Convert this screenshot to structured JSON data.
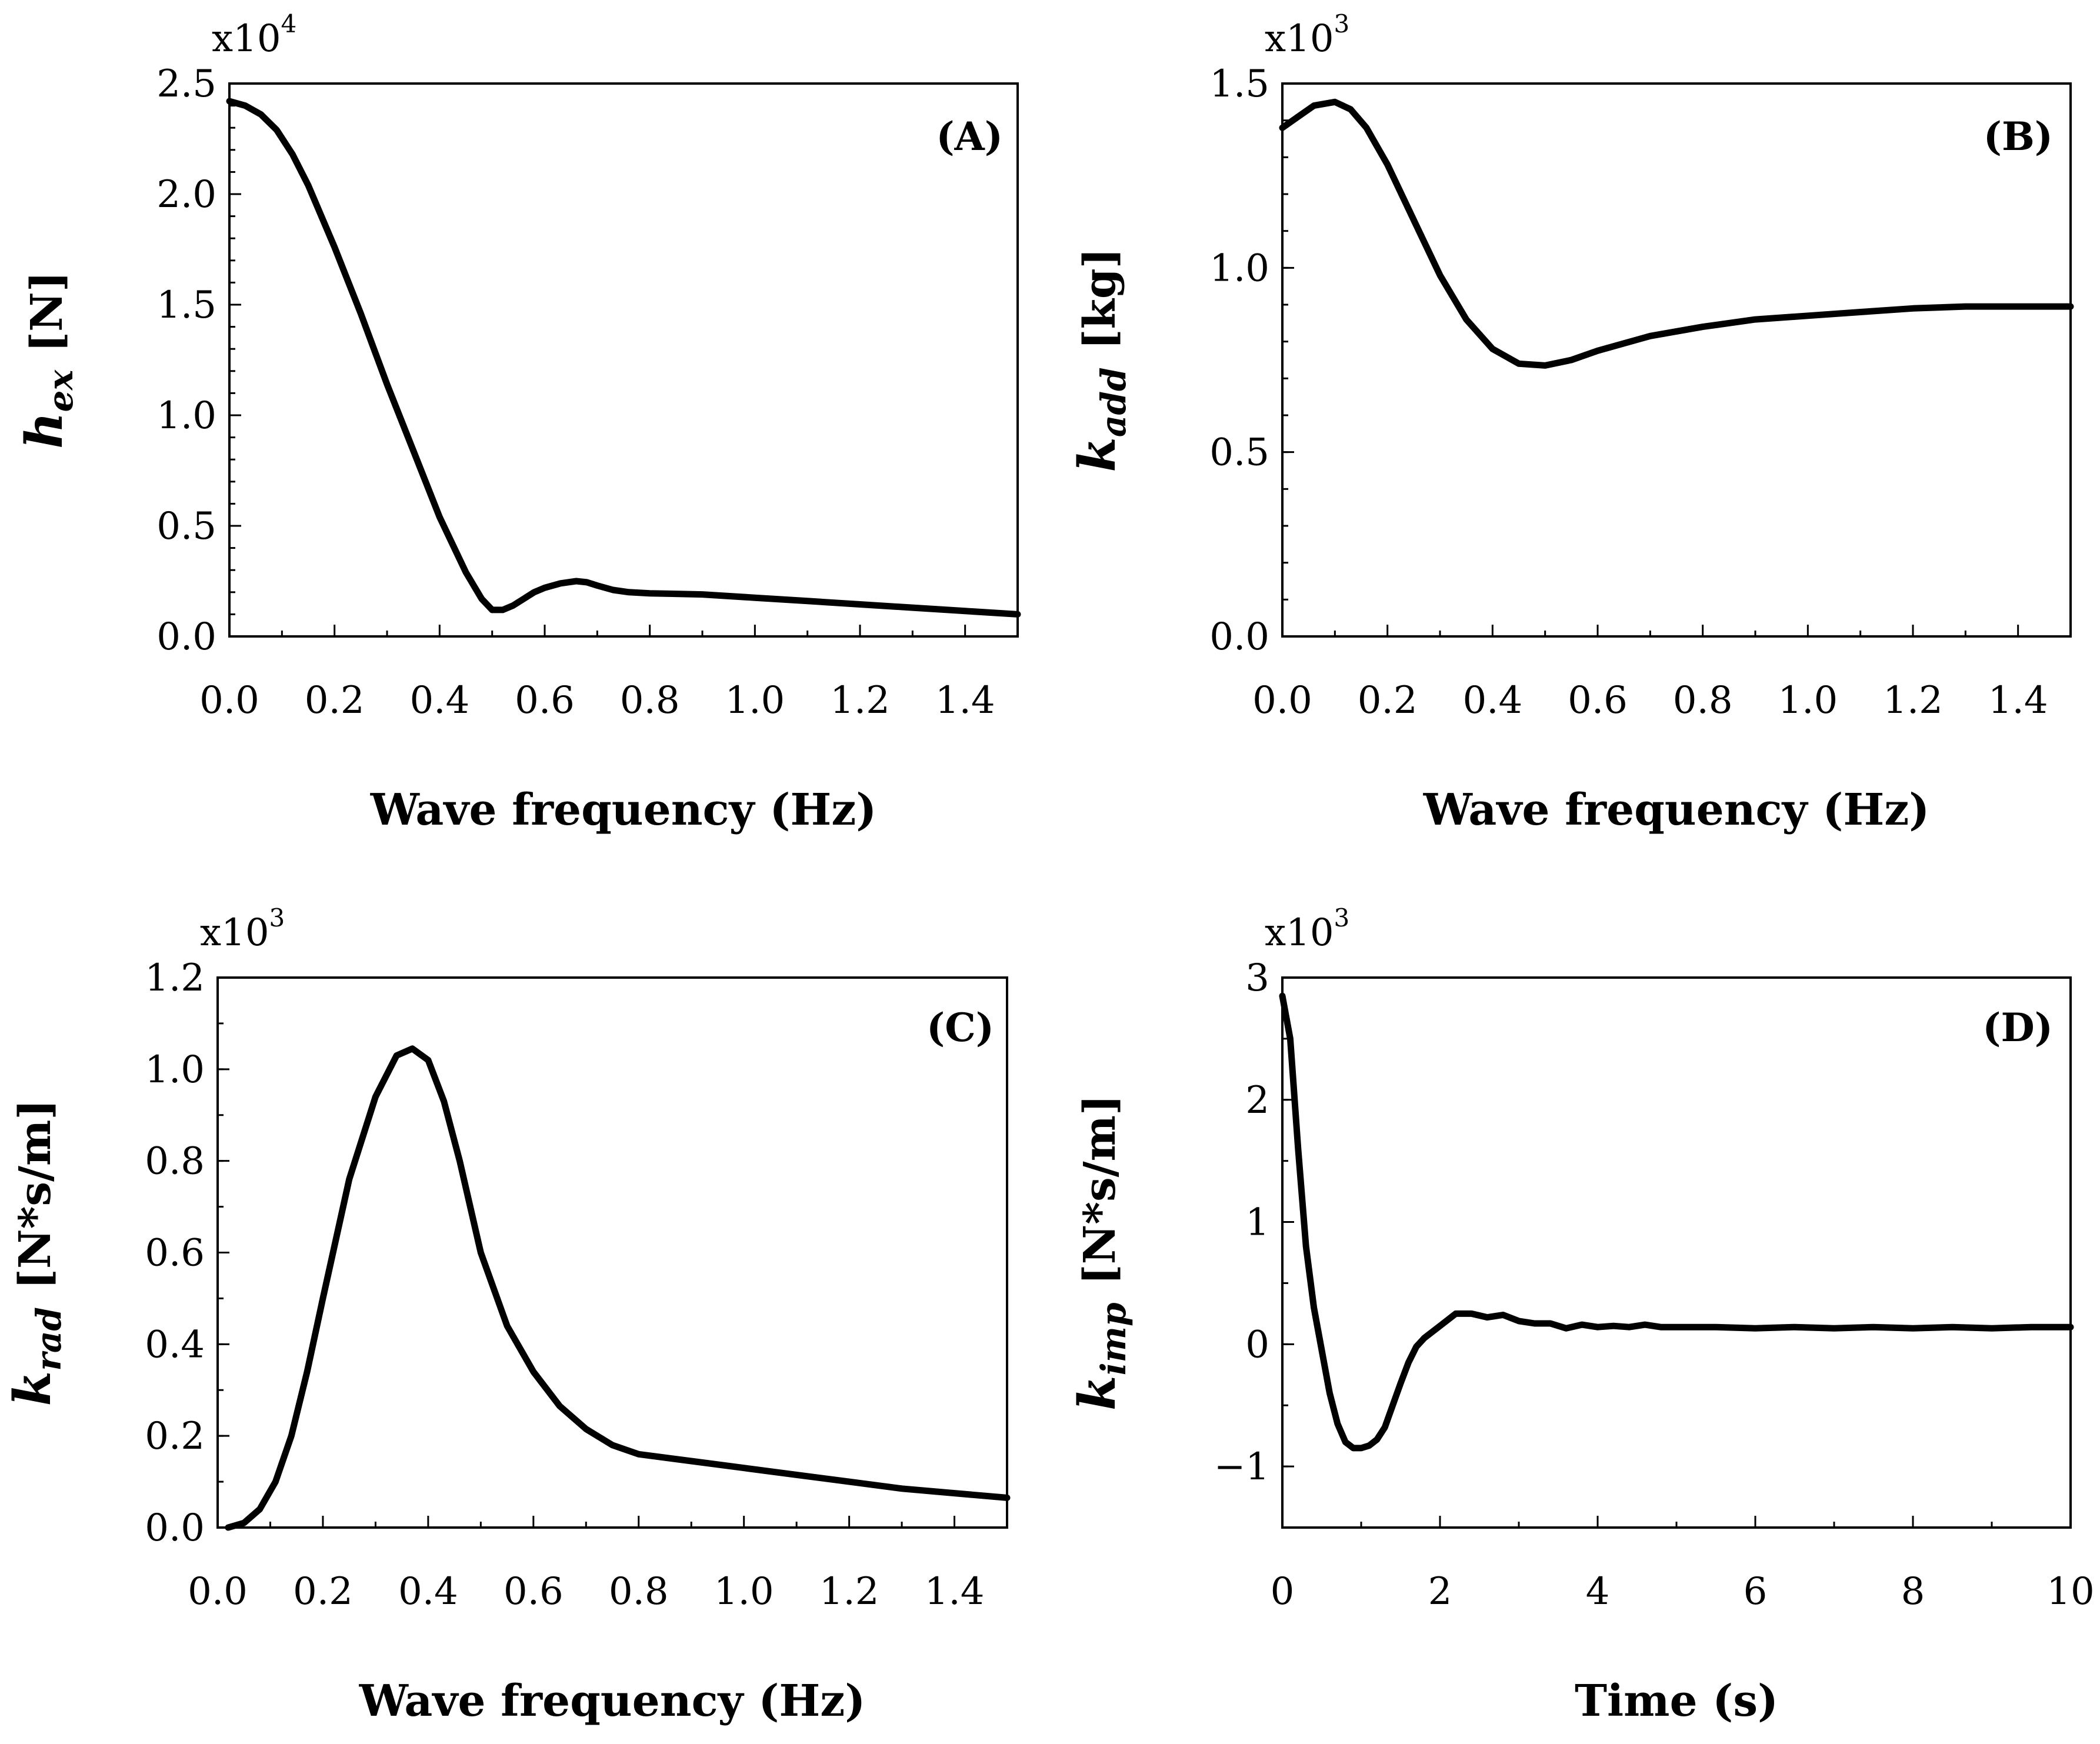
{
  "chart_data": [
    {
      "id": "A",
      "type": "line",
      "panel_label": "(A)",
      "xlabel": "Wave frequency (Hz)",
      "ylabel_symbol": "h",
      "ylabel_subscript": "ex",
      "ylabel_unit": "[N]",
      "scale_base": "x10",
      "scale_exp": "4",
      "xlim": [
        0,
        1.5
      ],
      "ylim": [
        0,
        2.5
      ],
      "xticks": [
        0,
        0.2,
        0.4,
        0.6,
        0.8,
        1.0,
        1.2,
        1.4
      ],
      "xtick_labels": [
        "0.0",
        "0.2",
        "0.4",
        "0.6",
        "0.8",
        "1.0",
        "1.2",
        "1.4"
      ],
      "yticks": [
        0,
        0.5,
        1.0,
        1.5,
        2.0,
        2.5
      ],
      "ytick_labels": [
        "0.0",
        "0.5",
        "1.0",
        "1.5",
        "2.0",
        "2.5"
      ],
      "y_minor_step": 0.1,
      "series": [
        {
          "name": "h_ex",
          "x": [
            0,
            0.03,
            0.06,
            0.09,
            0.12,
            0.15,
            0.2,
            0.25,
            0.3,
            0.35,
            0.4,
            0.45,
            0.48,
            0.5,
            0.52,
            0.54,
            0.56,
            0.58,
            0.6,
            0.63,
            0.66,
            0.68,
            0.7,
            0.73,
            0.76,
            0.8,
            0.9,
            1.0,
            1.1,
            1.2,
            1.3,
            1.4,
            1.5
          ],
          "y": [
            2.42,
            2.4,
            2.36,
            2.29,
            2.18,
            2.04,
            1.76,
            1.46,
            1.14,
            0.84,
            0.54,
            0.29,
            0.17,
            0.12,
            0.12,
            0.14,
            0.17,
            0.2,
            0.22,
            0.24,
            0.25,
            0.245,
            0.23,
            0.21,
            0.2,
            0.195,
            0.19,
            0.175,
            0.16,
            0.145,
            0.13,
            0.115,
            0.1
          ]
        }
      ]
    },
    {
      "id": "B",
      "type": "line",
      "panel_label": "(B)",
      "xlabel": "Wave frequency (Hz)",
      "ylabel_symbol": "k",
      "ylabel_subscript": "add",
      "ylabel_unit": "[kg]",
      "scale_base": "x10",
      "scale_exp": "3",
      "xlim": [
        0,
        1.5
      ],
      "ylim": [
        0,
        1.5
      ],
      "xticks": [
        0,
        0.2,
        0.4,
        0.6,
        0.8,
        1.0,
        1.2,
        1.4
      ],
      "xtick_labels": [
        "0.0",
        "0.2",
        "0.4",
        "0.6",
        "0.8",
        "1.0",
        "1.2",
        "1.4"
      ],
      "yticks": [
        0,
        0.5,
        1.0,
        1.5
      ],
      "ytick_labels": [
        "0.0",
        "0.5",
        "1.0",
        "1.5"
      ],
      "y_minor_step": 0.1,
      "series": [
        {
          "name": "k_add",
          "x": [
            0,
            0.03,
            0.06,
            0.1,
            0.13,
            0.16,
            0.2,
            0.25,
            0.3,
            0.35,
            0.4,
            0.45,
            0.5,
            0.55,
            0.6,
            0.7,
            0.8,
            0.9,
            1.0,
            1.1,
            1.2,
            1.3,
            1.4,
            1.5
          ],
          "y": [
            1.38,
            1.41,
            1.44,
            1.45,
            1.43,
            1.38,
            1.28,
            1.13,
            0.98,
            0.86,
            0.78,
            0.74,
            0.735,
            0.75,
            0.775,
            0.815,
            0.84,
            0.86,
            0.87,
            0.88,
            0.89,
            0.895,
            0.895,
            0.895
          ]
        }
      ]
    },
    {
      "id": "C",
      "type": "line",
      "panel_label": "(C)",
      "xlabel": "Wave frequency (Hz)",
      "ylabel_symbol": "k",
      "ylabel_subscript": "rad",
      "ylabel_unit": "[N*s/m]",
      "scale_base": "x10",
      "scale_exp": "3",
      "xlim": [
        0,
        1.5
      ],
      "ylim": [
        0,
        1.2
      ],
      "xticks": [
        0,
        0.2,
        0.4,
        0.6,
        0.8,
        1.0,
        1.2,
        1.4
      ],
      "xtick_labels": [
        "0.0",
        "0.2",
        "0.4",
        "0.6",
        "0.8",
        "1.0",
        "1.2",
        "1.4"
      ],
      "yticks": [
        0,
        0.2,
        0.4,
        0.6,
        0.8,
        1.0,
        1.2
      ],
      "ytick_labels": [
        "0.0",
        "0.2",
        "0.4",
        "0.6",
        "0.8",
        "1.0",
        "1.2"
      ],
      "y_minor_step": 0.1,
      "series": [
        {
          "name": "k_rad",
          "x": [
            0.02,
            0.05,
            0.08,
            0.11,
            0.14,
            0.17,
            0.2,
            0.25,
            0.3,
            0.34,
            0.37,
            0.4,
            0.43,
            0.46,
            0.5,
            0.55,
            0.6,
            0.65,
            0.7,
            0.75,
            0.8,
            0.9,
            1.0,
            1.1,
            1.2,
            1.3,
            1.4,
            1.5
          ],
          "y": [
            0.0,
            0.01,
            0.04,
            0.1,
            0.2,
            0.34,
            0.5,
            0.76,
            0.94,
            1.03,
            1.045,
            1.02,
            0.93,
            0.8,
            0.6,
            0.44,
            0.34,
            0.265,
            0.215,
            0.18,
            0.16,
            0.145,
            0.13,
            0.115,
            0.1,
            0.085,
            0.075,
            0.065
          ]
        }
      ]
    },
    {
      "id": "D",
      "type": "line",
      "panel_label": "(D)",
      "xlabel": "Time (s)",
      "ylabel_symbol": "k",
      "ylabel_subscript": "imp",
      "ylabel_unit": "[N*s/m]",
      "scale_base": "x10",
      "scale_exp": "3",
      "xlim": [
        0,
        10
      ],
      "ylim": [
        -1.5,
        3
      ],
      "xticks": [
        0,
        2,
        4,
        6,
        8,
        10
      ],
      "xtick_labels": [
        "0",
        "2",
        "4",
        "6",
        "8",
        "10"
      ],
      "yticks": [
        -1,
        0,
        1,
        2,
        3
      ],
      "ytick_labels": [
        "−1",
        "0",
        "1",
        "2",
        "3"
      ],
      "y_minor_step": 0.5,
      "series": [
        {
          "name": "k_imp",
          "x": [
            0,
            0.1,
            0.2,
            0.3,
            0.4,
            0.5,
            0.6,
            0.7,
            0.8,
            0.9,
            1.0,
            1.1,
            1.2,
            1.3,
            1.4,
            1.5,
            1.6,
            1.7,
            1.8,
            2.0,
            2.2,
            2.4,
            2.6,
            2.8,
            3.0,
            3.2,
            3.4,
            3.6,
            3.8,
            4.0,
            4.2,
            4.4,
            4.6,
            4.8,
            5.0,
            5.5,
            6.0,
            6.5,
            7.0,
            7.5,
            8.0,
            8.5,
            9.0,
            9.5,
            10.0
          ],
          "y": [
            2.85,
            2.5,
            1.6,
            0.8,
            0.3,
            -0.05,
            -0.4,
            -0.65,
            -0.8,
            -0.85,
            -0.85,
            -0.83,
            -0.78,
            -0.68,
            -0.5,
            -0.32,
            -0.15,
            -0.02,
            0.05,
            0.15,
            0.25,
            0.25,
            0.22,
            0.24,
            0.19,
            0.17,
            0.17,
            0.13,
            0.16,
            0.14,
            0.15,
            0.14,
            0.16,
            0.14,
            0.14,
            0.14,
            0.13,
            0.14,
            0.13,
            0.14,
            0.13,
            0.14,
            0.13,
            0.14,
            0.14
          ]
        }
      ]
    }
  ]
}
